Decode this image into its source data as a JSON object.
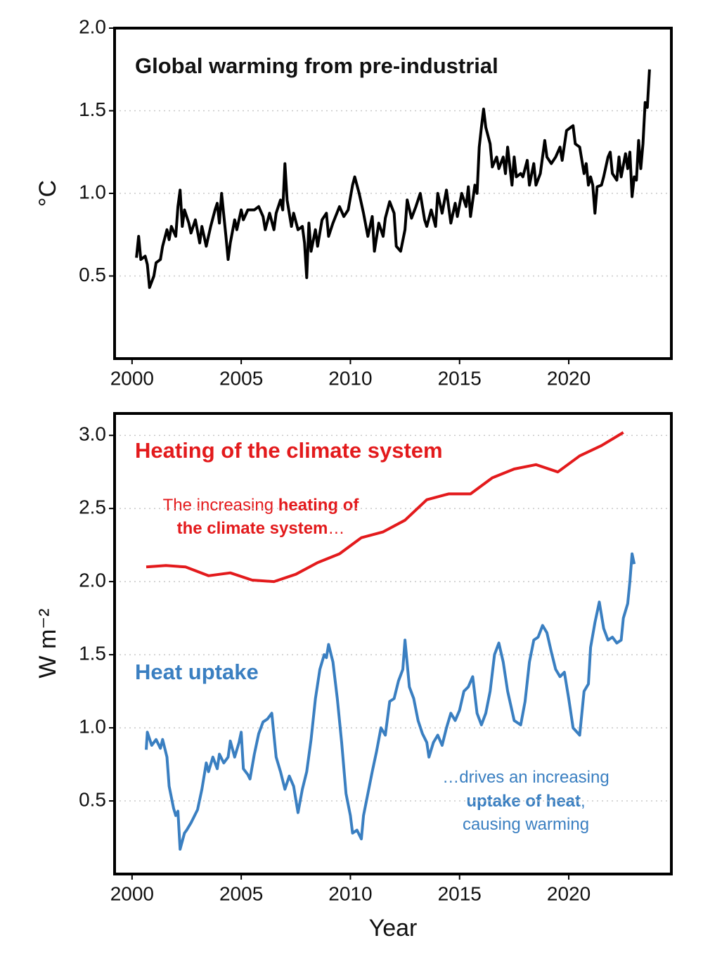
{
  "chart_data": [
    {
      "type": "line",
      "title": "Global warming from pre-industrial",
      "ylabel": "°C",
      "xlim": [
        1999.2,
        2024.7
      ],
      "xticks": [
        2000,
        2005,
        2010,
        2015,
        2020
      ],
      "ylim": [
        0,
        2.0
      ],
      "yticks": [
        0.5,
        {
          "value": 1,
          "label": "1.0"
        },
        1.5,
        {
          "value": 2,
          "label": "2.0"
        }
      ],
      "grid": true,
      "series": [
        {
          "name": null,
          "color": "#000000",
          "x": [
            2000.2,
            2000.3,
            2000.4,
            2000.6,
            2000.7,
            2000.8,
            2001.0,
            2001.1,
            2001.3,
            2001.4,
            2001.6,
            2001.7,
            2001.8,
            2002.0,
            2002.1,
            2002.2,
            2002.3,
            2002.4,
            2002.6,
            2002.7,
            2002.9,
            2003.1,
            2003.2,
            2003.4,
            2003.6,
            2003.8,
            2003.9,
            2004.0,
            2004.1,
            2004.3,
            2004.4,
            2004.5,
            2004.7,
            2004.8,
            2005.0,
            2005.1,
            2005.3,
            2005.6,
            2005.8,
            2006.0,
            2006.1,
            2006.3,
            2006.5,
            2006.6,
            2006.8,
            2006.9,
            2007.0,
            2007.1,
            2007.3,
            2007.4,
            2007.6,
            2007.8,
            2007.9,
            2008.0,
            2008.1,
            2008.2,
            2008.4,
            2008.5,
            2008.7,
            2008.9,
            2009.0,
            2009.2,
            2009.5,
            2009.7,
            2009.9,
            2010.1,
            2010.2,
            2010.4,
            2010.6,
            2010.8,
            2011.0,
            2011.1,
            2011.3,
            2011.5,
            2011.6,
            2011.8,
            2012.0,
            2012.1,
            2012.3,
            2012.5,
            2012.6,
            2012.8,
            2013.0,
            2013.2,
            2013.4,
            2013.5,
            2013.7,
            2013.9,
            2014.0,
            2014.2,
            2014.4,
            2014.6,
            2014.8,
            2014.9,
            2015.1,
            2015.3,
            2015.4,
            2015.5,
            2015.7,
            2015.8,
            2015.9,
            2016.0,
            2016.1,
            2016.2,
            2016.4,
            2016.5,
            2016.7,
            2016.8,
            2017.0,
            2017.1,
            2017.2,
            2017.4,
            2017.5,
            2017.6,
            2017.8,
            2017.9,
            2018.1,
            2018.2,
            2018.4,
            2018.5,
            2018.7,
            2018.9,
            2019.0,
            2019.2,
            2019.4,
            2019.6,
            2019.7,
            2019.9,
            2020.1,
            2020.2,
            2020.3,
            2020.5,
            2020.6,
            2020.7,
            2020.8,
            2020.9,
            2021.0,
            2021.1,
            2021.2,
            2021.3,
            2021.5,
            2021.6,
            2021.8,
            2021.9,
            2022.0,
            2022.2,
            2022.3,
            2022.4,
            2022.6,
            2022.7,
            2022.8,
            2022.9,
            2023.0,
            2023.1,
            2023.2,
            2023.3,
            2023.4,
            2023.5,
            2023.6,
            2023.7
          ],
          "values": [
            0.61,
            0.74,
            0.6,
            0.62,
            0.57,
            0.43,
            0.5,
            0.58,
            0.6,
            0.68,
            0.78,
            0.72,
            0.8,
            0.74,
            0.92,
            1.02,
            0.8,
            0.9,
            0.82,
            0.76,
            0.84,
            0.7,
            0.8,
            0.68,
            0.8,
            0.9,
            0.94,
            0.82,
            1.0,
            0.74,
            0.6,
            0.7,
            0.84,
            0.78,
            0.9,
            0.84,
            0.9,
            0.9,
            0.92,
            0.86,
            0.78,
            0.88,
            0.78,
            0.88,
            0.96,
            0.9,
            1.18,
            0.96,
            0.8,
            0.88,
            0.78,
            0.8,
            0.7,
            0.49,
            0.82,
            0.65,
            0.78,
            0.68,
            0.84,
            0.88,
            0.74,
            0.82,
            0.92,
            0.86,
            0.9,
            1.05,
            1.1,
            1.0,
            0.88,
            0.74,
            0.86,
            0.65,
            0.82,
            0.74,
            0.85,
            0.95,
            0.88,
            0.68,
            0.65,
            0.78,
            0.96,
            0.85,
            0.92,
            1.0,
            0.84,
            0.8,
            0.9,
            0.8,
            1.0,
            0.88,
            1.02,
            0.82,
            0.94,
            0.86,
            1.0,
            0.92,
            1.04,
            0.86,
            1.05,
            1.0,
            1.28,
            1.4,
            1.51,
            1.4,
            1.3,
            1.16,
            1.22,
            1.15,
            1.22,
            1.12,
            1.28,
            1.05,
            1.22,
            1.1,
            1.12,
            1.1,
            1.2,
            1.05,
            1.18,
            1.05,
            1.12,
            1.32,
            1.22,
            1.18,
            1.22,
            1.28,
            1.2,
            1.38,
            1.4,
            1.41,
            1.3,
            1.28,
            1.2,
            1.12,
            1.18,
            1.05,
            1.1,
            1.05,
            0.88,
            1.04,
            1.05,
            1.1,
            1.22,
            1.25,
            1.12,
            1.08,
            1.22,
            1.1,
            1.24,
            1.15,
            1.25,
            0.98,
            1.1,
            1.08,
            1.32,
            1.15,
            1.3,
            1.55,
            1.52,
            1.75
          ]
        }
      ]
    },
    {
      "type": "line",
      "ylabel": "W m⁻²",
      "xlabel": "Year",
      "xlim": [
        1999.2,
        2024.7
      ],
      "xticks": [
        2000,
        2005,
        2010,
        2015,
        2020
      ],
      "ylim": [
        0,
        3.15
      ],
      "yticks": [
        0.5,
        {
          "value": 1,
          "label": "1.0"
        },
        1.5,
        {
          "value": 2,
          "label": "2.0"
        },
        2.5,
        {
          "value": 3,
          "label": "3.0"
        }
      ],
      "grid": true,
      "series": [
        {
          "name": "Heating of the climate system",
          "color": "#e31a1c",
          "x": [
            2000.65,
            2001.55,
            2002.45,
            2003.5,
            2004.5,
            2005.5,
            2006.5,
            2007.5,
            2008.5,
            2009.5,
            2010.5,
            2011.5,
            2012.5,
            2013.5,
            2014.5,
            2015.5,
            2016.5,
            2017.5,
            2018.5,
            2019.5,
            2020.5,
            2021.5,
            2022.5
          ],
          "values": [
            2.1,
            2.11,
            2.1,
            2.04,
            2.06,
            2.01,
            2.0,
            2.05,
            2.13,
            2.19,
            2.3,
            2.34,
            2.42,
            2.56,
            2.6,
            2.6,
            2.71,
            2.77,
            2.8,
            2.75,
            2.86,
            2.93,
            3.02
          ]
        },
        {
          "name": "Heat uptake",
          "color": "#3a7fc1",
          "x": [
            2000.65,
            2000.7,
            2000.9,
            2001.1,
            2001.3,
            2001.4,
            2001.6,
            2001.7,
            2001.9,
            2002.0,
            2002.1,
            2002.2,
            2002.4,
            2002.5,
            2002.7,
            2002.8,
            2003.0,
            2003.2,
            2003.4,
            2003.5,
            2003.7,
            2003.9,
            2004.0,
            2004.2,
            2004.4,
            2004.5,
            2004.7,
            2004.9,
            2005.0,
            2005.1,
            2005.3,
            2005.4,
            2005.6,
            2005.8,
            2006.0,
            2006.2,
            2006.4,
            2006.6,
            2006.8,
            2007.0,
            2007.2,
            2007.4,
            2007.6,
            2007.8,
            2008.0,
            2008.2,
            2008.4,
            2008.6,
            2008.8,
            2008.9,
            2009.0,
            2009.2,
            2009.4,
            2009.6,
            2009.8,
            2010.0,
            2010.1,
            2010.3,
            2010.5,
            2010.6,
            2010.8,
            2011.0,
            2011.2,
            2011.4,
            2011.6,
            2011.8,
            2012.0,
            2012.2,
            2012.4,
            2012.5,
            2012.7,
            2012.9,
            2013.1,
            2013.3,
            2013.5,
            2013.6,
            2013.8,
            2014.0,
            2014.2,
            2014.4,
            2014.6,
            2014.8,
            2015.0,
            2015.2,
            2015.4,
            2015.6,
            2015.8,
            2016.0,
            2016.2,
            2016.4,
            2016.6,
            2016.8,
            2017.0,
            2017.2,
            2017.5,
            2017.8,
            2018.0,
            2018.2,
            2018.4,
            2018.6,
            2018.8,
            2019.0,
            2019.2,
            2019.4,
            2019.6,
            2019.8,
            2020.0,
            2020.2,
            2020.5,
            2020.7,
            2020.9,
            2021.0,
            2021.2,
            2021.4,
            2021.6,
            2021.8,
            2022.0,
            2022.2,
            2022.4,
            2022.5,
            2022.7,
            2022.8,
            2022.9,
            2023.0
          ],
          "values": [
            0.85,
            0.97,
            0.88,
            0.92,
            0.86,
            0.92,
            0.8,
            0.6,
            0.45,
            0.4,
            0.43,
            0.17,
            0.28,
            0.3,
            0.35,
            0.38,
            0.44,
            0.58,
            0.76,
            0.7,
            0.8,
            0.72,
            0.82,
            0.76,
            0.8,
            0.91,
            0.8,
            0.9,
            0.97,
            0.72,
            0.68,
            0.65,
            0.82,
            0.96,
            1.04,
            1.06,
            1.1,
            0.8,
            0.7,
            0.58,
            0.67,
            0.6,
            0.42,
            0.58,
            0.7,
            0.92,
            1.2,
            1.4,
            1.5,
            1.48,
            1.57,
            1.45,
            1.2,
            0.9,
            0.55,
            0.4,
            0.28,
            0.3,
            0.24,
            0.4,
            0.55,
            0.7,
            0.84,
            1.0,
            0.95,
            1.18,
            1.2,
            1.32,
            1.4,
            1.6,
            1.28,
            1.2,
            1.05,
            0.96,
            0.9,
            0.8,
            0.9,
            0.95,
            0.88,
            1.0,
            1.1,
            1.05,
            1.12,
            1.25,
            1.28,
            1.35,
            1.1,
            1.02,
            1.1,
            1.25,
            1.5,
            1.58,
            1.45,
            1.25,
            1.05,
            1.02,
            1.18,
            1.45,
            1.6,
            1.62,
            1.7,
            1.65,
            1.52,
            1.4,
            1.35,
            1.38,
            1.2,
            1.0,
            0.95,
            1.25,
            1.3,
            1.55,
            1.72,
            1.86,
            1.68,
            1.6,
            1.62,
            1.58,
            1.6,
            1.75,
            1.85,
            2.0,
            2.19,
            2.12
          ]
        }
      ],
      "annotations": [
        [
          [
            "The increasing ",
            "heating of"
          ],
          [
            "the climate system",
            "…"
          ]
        ],
        [
          [
            "…drives an increasing"
          ],
          [
            "uptake of heat",
            ","
          ],
          [
            "causing warming"
          ]
        ]
      ]
    }
  ]
}
